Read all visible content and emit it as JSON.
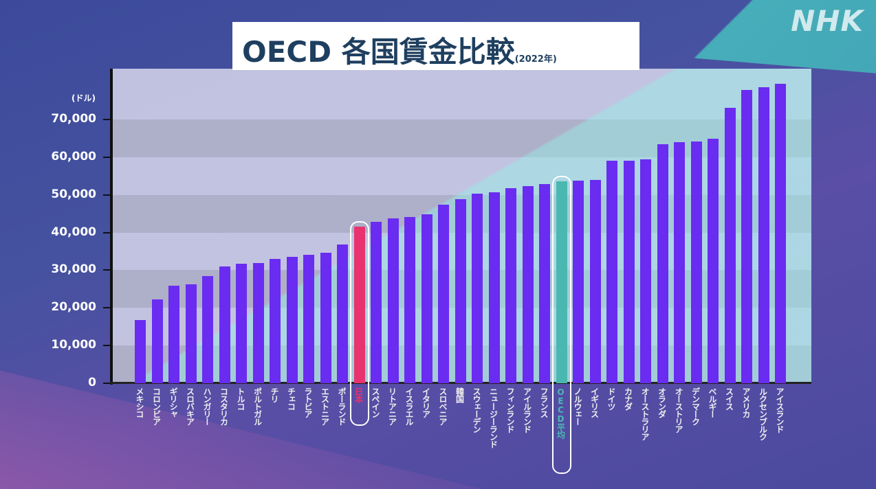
{
  "logo": "NHK",
  "chart_data": {
    "type": "bar",
    "title": "OECD 各国賃金比較",
    "subtitle": "(2022年)",
    "ylabel": "(ドル)",
    "xlabel": "",
    "ylim": [
      0,
      83000
    ],
    "y_ticks": [
      "0",
      "10,000",
      "20,000",
      "30,000",
      "40,000",
      "50,000",
      "60,000",
      "70,000"
    ],
    "y_tick_values": [
      0,
      10000,
      20000,
      30000,
      40000,
      50000,
      60000,
      70000
    ],
    "grid": "alternating bands",
    "categories": [
      "メキシコ",
      "コロンビア",
      "ギリシャ",
      "スロバキア",
      "ハンガリー",
      "コスタリカ",
      "トルコ",
      "ポルトガル",
      "チリ",
      "チェコ",
      "ラトビア",
      "エストニア",
      "ポーランド",
      "日本",
      "スペイン",
      "リトアニア",
      "イスラエル",
      "イタリア",
      "スロベニア",
      "韓国",
      "スウェーデン",
      "ニュージーランド",
      "フィンランド",
      "アイルランド",
      "フランス",
      "OECD平均",
      "ノルウェー",
      "イギリス",
      "ドイツ",
      "カナダ",
      "オーストラリア",
      "オランダ",
      "オーストリア",
      "デンマーク",
      "ベルギー",
      "スイス",
      "アメリカ",
      "ルクセンブルク",
      "アイスランド"
    ],
    "values": [
      16800,
      22200,
      25900,
      26200,
      28400,
      31000,
      31700,
      31900,
      33000,
      33500,
      34100,
      34600,
      36800,
      41600,
      42800,
      43700,
      44100,
      44800,
      47400,
      48900,
      50300,
      50700,
      51800,
      52300,
      52900,
      53600,
      53800,
      54000,
      59100,
      59100,
      59400,
      63400,
      64000,
      64200,
      64900,
      73100,
      77800,
      78600,
      79500
    ],
    "highlight": {
      "日本": "#e8336e",
      "OECD平均": "#4ab8b0"
    },
    "bar_color": "#6a2cf0"
  }
}
